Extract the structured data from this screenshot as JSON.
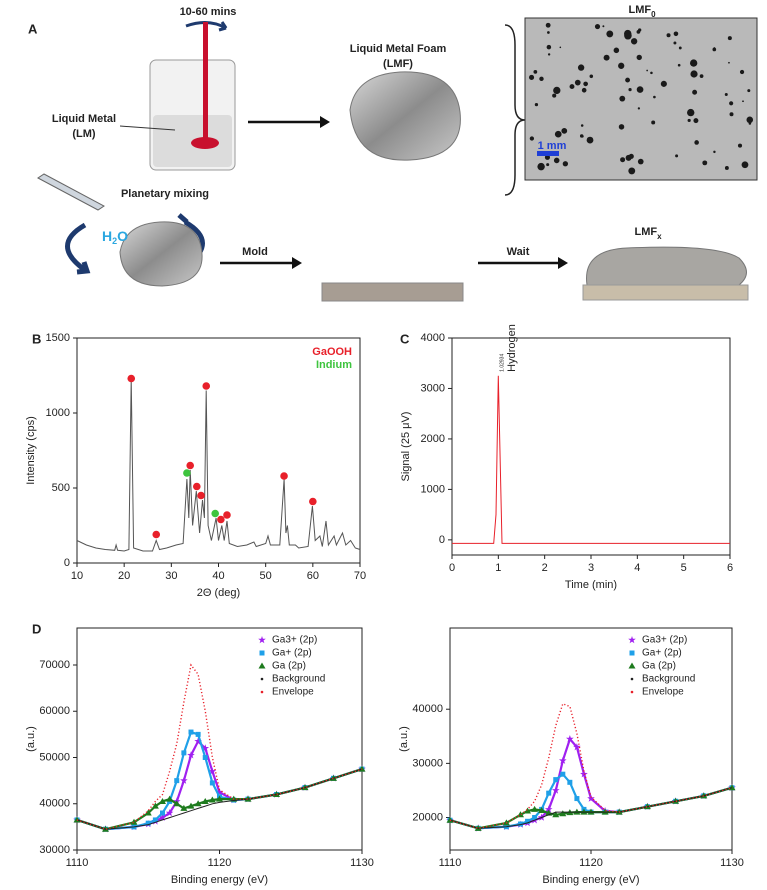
{
  "panel_a": {
    "letter": "A",
    "stir_time": "10-60 mins",
    "lm_label": [
      "Liquid Metal",
      "(LM)"
    ],
    "lmf_label": [
      "Liquid Metal Foam",
      "(LMF)"
    ],
    "lmf0": {
      "text": "LMF",
      "sub": "0"
    },
    "scale_bar": "1 mm",
    "planetary": "Planetary mixing",
    "water": {
      "text": "H",
      "sub": "2",
      "rest": "O"
    },
    "mold": "Mold",
    "wait": "Wait",
    "lmfx": {
      "text": "LMF",
      "sub": "x"
    }
  },
  "chart_data": [
    {
      "type": "line",
      "panel": "B",
      "xlabel": "2Θ (deg)",
      "ylabel": "Intensity (cps)",
      "xlim": [
        10,
        70
      ],
      "ylim": [
        0,
        1500
      ],
      "xticks": [
        10,
        20,
        30,
        40,
        50,
        60,
        70
      ],
      "yticks": [
        0,
        500,
        1000,
        1500
      ],
      "legend": "upper right",
      "legend_markers": false,
      "series": [
        {
          "color": "#555555",
          "line": true,
          "x": [
            10,
            12,
            14,
            16,
            18,
            18.3,
            18.6,
            20,
            21,
            21.5,
            22,
            24,
            26,
            26.8,
            27.5,
            29,
            31,
            32.5,
            33.3,
            33.7,
            34,
            34.5,
            35.3,
            36,
            36.6,
            37,
            37.4,
            37.8,
            38.5,
            39.5,
            40,
            40.7,
            41.2,
            41.8,
            42.3,
            44,
            46,
            47.5,
            48,
            50,
            50.5,
            51,
            53,
            53.9,
            54.3,
            54.6,
            55,
            56.3,
            57,
            59,
            59.9,
            60.5,
            61.5,
            62,
            62.8,
            63.3,
            64.5,
            65,
            66.3,
            67,
            68,
            69,
            70
          ],
          "values": [
            150,
            120,
            100,
            90,
            85,
            120,
            85,
            80,
            90,
            1230,
            100,
            80,
            80,
            150,
            90,
            100,
            120,
            130,
            560,
            300,
            620,
            250,
            480,
            200,
            420,
            300,
            1150,
            250,
            150,
            300,
            150,
            250,
            150,
            280,
            130,
            110,
            120,
            140,
            110,
            130,
            180,
            120,
            120,
            560,
            200,
            250,
            120,
            120,
            100,
            110,
            380,
            150,
            180,
            110,
            280,
            120,
            180,
            120,
            200,
            120,
            150,
            100,
            90
          ]
        },
        {
          "name": "GaOOH",
          "color": "#e8202a",
          "marker": "circle",
          "x": [
            21.5,
            26.8,
            34,
            35.4,
            36.3,
            37.4,
            40.5,
            41.8,
            53.9,
            60
          ],
          "values": [
            1230,
            190,
            650,
            510,
            450,
            1180,
            290,
            320,
            580,
            410
          ]
        },
        {
          "name": "Indium",
          "color": "#3ec43e",
          "marker": "circle",
          "x": [
            33.3,
            39.3
          ],
          "values": [
            600,
            330
          ]
        }
      ]
    },
    {
      "type": "line",
      "panel": "C",
      "xlabel": "Time (min)",
      "ylabel": "Signal (25 μV)",
      "xlim": [
        0,
        6
      ],
      "ylim": [
        -300,
        4000
      ],
      "xticks": [
        0,
        1,
        2,
        3,
        4,
        5,
        6
      ],
      "yticks": [
        0,
        1000,
        2000,
        3000,
        4000
      ],
      "annotations": [
        "1.02934",
        "Hydrogen"
      ],
      "series": [
        {
          "color": "#e8202a",
          "line": true,
          "x": [
            0,
            0.9,
            0.95,
            1.0,
            1.03,
            1.08,
            1.15,
            6
          ],
          "values": [
            -70,
            -70,
            500,
            3250,
            2000,
            -70,
            -70,
            -70
          ]
        }
      ]
    },
    {
      "type": "line",
      "panel": "D",
      "xlabel": "Binding energy (eV)",
      "ylabel": "(a.u.)",
      "xlim": [
        1110,
        1130
      ],
      "ylim": [
        30000,
        78000
      ],
      "xticks": [
        1110,
        1120,
        1130
      ],
      "yticks": [
        30000,
        40000,
        50000,
        60000,
        70000
      ],
      "legend": "upper right",
      "legend_markers": true,
      "series": [
        {
          "name": "Ga3+ (2p)",
          "color": "#a020f0",
          "marker": "star",
          "line": true,
          "x": [
            1110,
            1112,
            1114,
            1115,
            1115.5,
            1116,
            1116.5,
            1117,
            1117.5,
            1118,
            1118.5,
            1119,
            1119.5,
            1120,
            1121,
            1122,
            1124,
            1126,
            1128,
            1130
          ],
          "values": [
            36500,
            34500,
            35000,
            35600,
            36200,
            37000,
            38000,
            40500,
            45000,
            50500,
            53500,
            52000,
            47000,
            42500,
            40800,
            41000,
            42000,
            43500,
            45500,
            47500
          ]
        },
        {
          "name": "Ga+ (2p)",
          "color": "#1fa0e8",
          "marker": "square",
          "line": true,
          "x": [
            1110,
            1112,
            1114,
            1115,
            1115.5,
            1116,
            1116.5,
            1117,
            1117.5,
            1118,
            1118.5,
            1119,
            1119.5,
            1120,
            1121,
            1122,
            1124,
            1126,
            1128,
            1130
          ],
          "values": [
            36500,
            34500,
            35000,
            35800,
            36500,
            38000,
            40500,
            45000,
            51000,
            55500,
            55000,
            50000,
            44500,
            41500,
            40800,
            41000,
            42000,
            43500,
            45500,
            47500
          ]
        },
        {
          "name": "Ga (2p)",
          "color": "#1e7b1e",
          "marker": "triangle",
          "line": true,
          "x": [
            1110,
            1112,
            1114,
            1115,
            1115.5,
            1116,
            1116.5,
            1117,
            1117.5,
            1118,
            1118.5,
            1119,
            1119.5,
            1120,
            1121,
            1122,
            1124,
            1126,
            1128,
            1130
          ],
          "values": [
            36500,
            34500,
            36000,
            38000,
            39500,
            40500,
            41000,
            40000,
            39000,
            39500,
            40000,
            40500,
            40800,
            41000,
            41000,
            41000,
            42000,
            43500,
            45500,
            47500
          ]
        },
        {
          "name": "Background",
          "color": "#222222",
          "marker": "dot",
          "line": true,
          "x": [
            1110,
            1112,
            1114,
            1115,
            1115.5,
            1116,
            1116.5,
            1117,
            1117.5,
            1118,
            1118.5,
            1119,
            1119.5,
            1120,
            1121,
            1122,
            1124,
            1126,
            1128,
            1130
          ],
          "values": [
            36500,
            34500,
            35000,
            35500,
            36000,
            36500,
            37000,
            37500,
            38000,
            38500,
            39000,
            39500,
            40000,
            40300,
            40700,
            41000,
            42000,
            43500,
            45500,
            47500
          ]
        },
        {
          "name": "Envelope",
          "color": "#e8202a",
          "marker": "dot",
          "line": true,
          "dotted": true,
          "x": [
            1110,
            1112,
            1114,
            1115,
            1115.5,
            1116,
            1116.5,
            1117,
            1117.5,
            1118,
            1118.5,
            1119,
            1119.5,
            1120,
            1121,
            1122,
            1124,
            1126,
            1128,
            1130
          ],
          "values": [
            36500,
            34500,
            36000,
            38500,
            40500,
            42000,
            47000,
            53000,
            62000,
            70000,
            68000,
            60000,
            50000,
            43000,
            41000,
            41000,
            42000,
            43500,
            45500,
            47500
          ]
        }
      ]
    },
    {
      "type": "line",
      "xlabel": "Binding energy (eV)",
      "ylabel": "(a.u.)",
      "xlim": [
        1110,
        1130
      ],
      "ylim": [
        14000,
        55000
      ],
      "xticks": [
        1110,
        1120,
        1130
      ],
      "yticks": [
        20000,
        30000,
        40000
      ],
      "legend": "upper right",
      "legend_markers": true,
      "series": [
        {
          "name": "Ga3+ (2p)",
          "color": "#a020f0",
          "marker": "star",
          "line": true,
          "x": [
            1110,
            1112,
            1114,
            1115,
            1115.5,
            1116,
            1116.5,
            1117,
            1117.5,
            1118,
            1118.5,
            1119,
            1119.5,
            1120,
            1121,
            1122,
            1124,
            1126,
            1128,
            1130
          ],
          "values": [
            19500,
            18000,
            18300,
            18700,
            19000,
            19500,
            20000,
            21500,
            25000,
            30500,
            34500,
            33000,
            28000,
            23500,
            21200,
            21000,
            22000,
            23000,
            24000,
            25500
          ]
        },
        {
          "name": "Ga+ (2p)",
          "color": "#1fa0e8",
          "marker": "square",
          "line": true,
          "x": [
            1110,
            1112,
            1114,
            1115,
            1115.5,
            1116,
            1116.5,
            1117,
            1117.5,
            1118,
            1118.5,
            1119,
            1119.5,
            1120,
            1121,
            1122,
            1124,
            1126,
            1128,
            1130
          ],
          "values": [
            19500,
            18000,
            18300,
            18800,
            19300,
            20000,
            21500,
            24500,
            27000,
            28000,
            26500,
            23500,
            21500,
            21000,
            21000,
            21000,
            22000,
            23000,
            24000,
            25500
          ]
        },
        {
          "name": "Ga (2p)",
          "color": "#1e7b1e",
          "marker": "triangle",
          "line": true,
          "x": [
            1110,
            1112,
            1114,
            1115,
            1115.5,
            1116,
            1116.5,
            1117,
            1117.5,
            1118,
            1118.5,
            1119,
            1119.5,
            1120,
            1121,
            1122,
            1124,
            1126,
            1128,
            1130
          ],
          "values": [
            19500,
            18000,
            19000,
            20500,
            21200,
            21500,
            21300,
            20800,
            20500,
            20700,
            20900,
            21000,
            21000,
            21000,
            21000,
            21000,
            22000,
            23000,
            24000,
            25500
          ]
        },
        {
          "name": "Background",
          "color": "#222222",
          "marker": "dot",
          "line": true,
          "x": [
            1110,
            1112,
            1114,
            1115,
            1115.5,
            1116,
            1116.5,
            1117,
            1117.5,
            1118,
            1118.5,
            1119,
            1119.5,
            1120,
            1121,
            1122,
            1124,
            1126,
            1128,
            1130
          ],
          "values": [
            19500,
            18000,
            18300,
            18700,
            19000,
            19500,
            20000,
            20500,
            21000,
            21000,
            21000,
            21000,
            21000,
            21000,
            21000,
            21000,
            22000,
            23000,
            24000,
            25500
          ]
        },
        {
          "name": "Envelope",
          "color": "#e8202a",
          "marker": "dot",
          "line": true,
          "dotted": true,
          "x": [
            1110,
            1112,
            1114,
            1115,
            1115.5,
            1116,
            1116.5,
            1117,
            1117.5,
            1118,
            1118.5,
            1119,
            1119.5,
            1120,
            1121,
            1122,
            1124,
            1126,
            1128,
            1130
          ],
          "values": [
            19500,
            18000,
            19000,
            20500,
            21500,
            23000,
            26000,
            31000,
            37000,
            41000,
            40500,
            35500,
            28500,
            23800,
            21300,
            21000,
            22000,
            23000,
            24000,
            25500
          ]
        }
      ]
    }
  ]
}
